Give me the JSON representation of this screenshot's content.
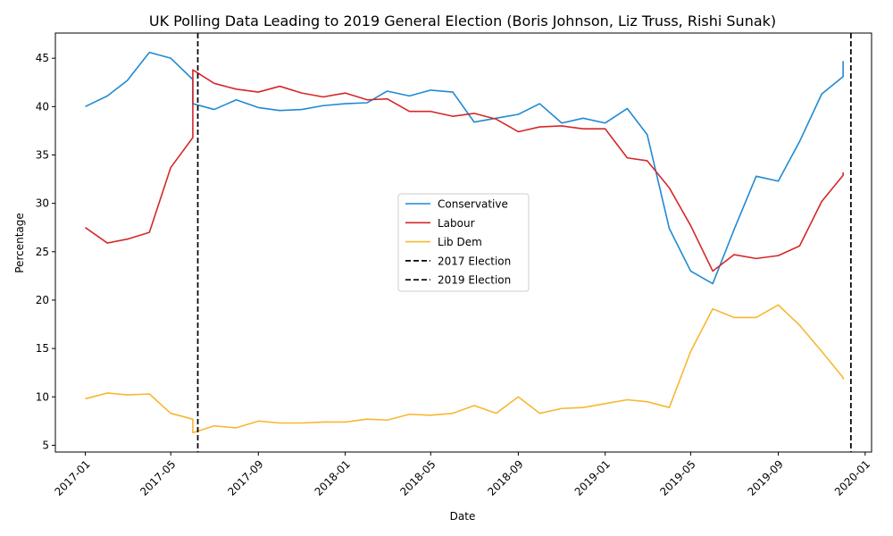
{
  "chart_data": {
    "type": "line",
    "title": "UK Polling Data Leading to 2019 General Election (Boris Johnson, Liz Truss, Rishi Sunak)",
    "xlabel": "Date",
    "ylabel": "Percentage",
    "xlim": [
      "2016-11-20",
      "2020-01-10"
    ],
    "ylim": [
      4.3,
      47.6
    ],
    "x_ticks": [
      "2017-01-01",
      "2017-05-01",
      "2017-09-01",
      "2018-01-01",
      "2018-05-01",
      "2018-09-01",
      "2019-01-01",
      "2019-05-01",
      "2019-09-01",
      "2020-01-01"
    ],
    "x_tick_labels": [
      "2017-01",
      "2017-05",
      "2017-09",
      "2018-01",
      "2018-05",
      "2018-09",
      "2019-01",
      "2019-05",
      "2019-09",
      "2020-01"
    ],
    "y_ticks": [
      5,
      10,
      15,
      20,
      25,
      30,
      35,
      40,
      45
    ],
    "y_tick_labels": [
      "5",
      "10",
      "15",
      "20",
      "25",
      "30",
      "35",
      "40",
      "45"
    ],
    "grid": false,
    "legend_position": "center-right",
    "series": [
      {
        "name": "Conservative",
        "color": "#1f8ad4",
        "x": [
          "2017-01-01",
          "2017-02-01",
          "2017-03-01",
          "2017-04-01",
          "2017-05-01",
          "2017-06-01",
          "2017-06-01",
          "2017-07-01",
          "2017-08-01",
          "2017-09-01",
          "2017-10-01",
          "2017-11-01",
          "2017-12-01",
          "2018-01-01",
          "2018-02-01",
          "2018-03-01",
          "2018-04-01",
          "2018-05-01",
          "2018-06-01",
          "2018-07-01",
          "2018-08-01",
          "2018-09-01",
          "2018-10-01",
          "2018-11-01",
          "2018-12-01",
          "2019-01-01",
          "2019-02-01",
          "2019-03-01",
          "2019-04-01",
          "2019-05-01",
          "2019-06-01",
          "2019-07-01",
          "2019-08-01",
          "2019-09-01",
          "2019-10-01",
          "2019-11-01",
          "2019-12-01",
          "2019-12-01"
        ],
        "values": [
          40.0,
          41.1,
          42.7,
          45.6,
          45.0,
          42.8,
          40.3,
          39.7,
          40.7,
          39.9,
          39.6,
          39.7,
          40.1,
          40.3,
          40.4,
          41.6,
          41.1,
          41.7,
          41.5,
          38.4,
          38.8,
          39.2,
          40.3,
          38.3,
          38.8,
          38.3,
          39.8,
          37.1,
          27.4,
          23.0,
          21.7,
          27.3,
          32.8,
          32.3,
          36.4,
          41.3,
          43.1,
          44.7
        ]
      },
      {
        "name": "Labour",
        "color": "#d62728",
        "x": [
          "2017-01-01",
          "2017-02-01",
          "2017-03-01",
          "2017-04-01",
          "2017-05-01",
          "2017-06-01",
          "2017-06-01",
          "2017-07-01",
          "2017-08-01",
          "2017-09-01",
          "2017-10-01",
          "2017-11-01",
          "2017-12-01",
          "2018-01-01",
          "2018-02-01",
          "2018-03-01",
          "2018-04-01",
          "2018-05-01",
          "2018-06-01",
          "2018-07-01",
          "2018-08-01",
          "2018-09-01",
          "2018-10-01",
          "2018-11-01",
          "2018-12-01",
          "2019-01-01",
          "2019-02-01",
          "2019-03-01",
          "2019-04-01",
          "2019-05-01",
          "2019-06-01",
          "2019-07-01",
          "2019-08-01",
          "2019-09-01",
          "2019-10-01",
          "2019-11-01",
          "2019-12-01",
          "2019-12-01"
        ],
        "values": [
          27.5,
          25.9,
          26.3,
          27.0,
          33.7,
          36.8,
          43.8,
          42.4,
          41.8,
          41.5,
          42.1,
          41.4,
          41.0,
          41.4,
          40.7,
          40.8,
          39.5,
          39.5,
          39.0,
          39.3,
          38.7,
          37.4,
          37.9,
          38.0,
          37.7,
          37.7,
          34.7,
          34.4,
          31.6,
          27.7,
          23.0,
          24.7,
          24.3,
          24.6,
          25.6,
          30.2,
          32.9,
          33.2
        ]
      },
      {
        "name": "Lib Dem",
        "color": "#f7b731",
        "x": [
          "2017-01-01",
          "2017-02-01",
          "2017-03-01",
          "2017-04-01",
          "2017-05-01",
          "2017-06-01",
          "2017-06-01",
          "2017-07-01",
          "2017-08-01",
          "2017-09-01",
          "2017-10-01",
          "2017-11-01",
          "2017-12-01",
          "2018-01-01",
          "2018-02-01",
          "2018-03-01",
          "2018-04-01",
          "2018-05-01",
          "2018-06-01",
          "2018-07-01",
          "2018-08-01",
          "2018-09-01",
          "2018-10-01",
          "2018-11-01",
          "2018-12-01",
          "2019-01-01",
          "2019-02-01",
          "2019-03-01",
          "2019-04-01",
          "2019-05-01",
          "2019-06-01",
          "2019-07-01",
          "2019-08-01",
          "2019-09-01",
          "2019-10-01",
          "2019-11-01",
          "2019-12-01",
          "2019-12-01"
        ],
        "values": [
          9.8,
          10.4,
          10.2,
          10.3,
          8.3,
          7.7,
          6.3,
          7.0,
          6.8,
          7.5,
          7.3,
          7.3,
          7.4,
          7.4,
          7.7,
          7.6,
          8.2,
          8.1,
          8.3,
          9.1,
          8.3,
          10.0,
          8.3,
          8.8,
          8.9,
          9.3,
          9.7,
          9.5,
          8.9,
          14.7,
          19.1,
          18.2,
          18.2,
          19.5,
          17.4,
          14.7,
          12.0,
          11.8
        ]
      }
    ],
    "vlines": [
      {
        "name": "2017 Election",
        "x": "2017-06-08",
        "color": "#000000",
        "style": "dashed"
      },
      {
        "name": "2019 Election",
        "x": "2019-12-12",
        "color": "#000000",
        "style": "dashed"
      }
    ]
  }
}
